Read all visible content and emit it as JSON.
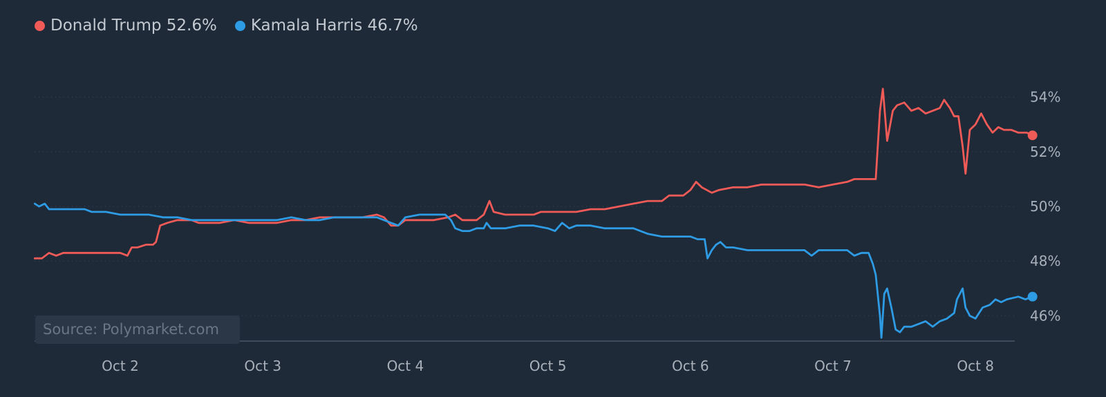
{
  "legend": {
    "trump": {
      "label": "Donald Trump 52.6%",
      "color": "#f05a57"
    },
    "harris": {
      "label": "Kamala Harris 46.7%",
      "color": "#2e9ce5"
    }
  },
  "source": "Source: Polymarket.com",
  "chart_data": {
    "type": "line",
    "xlim": [
      1.4,
      8.4
    ],
    "ylim": [
      45,
      55
    ],
    "x_ticks": [
      {
        "value": 2,
        "label": "Oct 2"
      },
      {
        "value": 3,
        "label": "Oct 3"
      },
      {
        "value": 4,
        "label": "Oct 4"
      },
      {
        "value": 5,
        "label": "Oct 5"
      },
      {
        "value": 6,
        "label": "Oct 6"
      },
      {
        "value": 7,
        "label": "Oct 7"
      },
      {
        "value": 8,
        "label": "Oct 8"
      }
    ],
    "y_ticks": [
      {
        "value": 46,
        "label": "46%"
      },
      {
        "value": 48,
        "label": "48%"
      },
      {
        "value": 50,
        "label": "50%"
      },
      {
        "value": 52,
        "label": "52%"
      },
      {
        "value": 54,
        "label": "54%"
      }
    ],
    "grid": true,
    "series": [
      {
        "name": "Donald Trump",
        "color": "#f05a57",
        "points": [
          [
            1.4,
            48.1
          ],
          [
            1.45,
            48.1
          ],
          [
            1.5,
            48.3
          ],
          [
            1.55,
            48.2
          ],
          [
            1.6,
            48.3
          ],
          [
            1.7,
            48.3
          ],
          [
            1.8,
            48.3
          ],
          [
            1.9,
            48.3
          ],
          [
            1.95,
            48.3
          ],
          [
            2.0,
            48.3
          ],
          [
            2.05,
            48.2
          ],
          [
            2.08,
            48.5
          ],
          [
            2.12,
            48.5
          ],
          [
            2.18,
            48.6
          ],
          [
            2.23,
            48.6
          ],
          [
            2.25,
            48.7
          ],
          [
            2.28,
            49.3
          ],
          [
            2.33,
            49.4
          ],
          [
            2.4,
            49.5
          ],
          [
            2.5,
            49.5
          ],
          [
            2.55,
            49.4
          ],
          [
            2.6,
            49.4
          ],
          [
            2.7,
            49.4
          ],
          [
            2.8,
            49.5
          ],
          [
            2.9,
            49.4
          ],
          [
            3.0,
            49.4
          ],
          [
            3.1,
            49.4
          ],
          [
            3.2,
            49.5
          ],
          [
            3.3,
            49.5
          ],
          [
            3.4,
            49.6
          ],
          [
            3.5,
            49.6
          ],
          [
            3.6,
            49.6
          ],
          [
            3.7,
            49.6
          ],
          [
            3.8,
            49.7
          ],
          [
            3.85,
            49.6
          ],
          [
            3.9,
            49.3
          ],
          [
            3.95,
            49.3
          ],
          [
            4.0,
            49.5
          ],
          [
            4.1,
            49.5
          ],
          [
            4.2,
            49.5
          ],
          [
            4.3,
            49.6
          ],
          [
            4.35,
            49.7
          ],
          [
            4.4,
            49.5
          ],
          [
            4.45,
            49.5
          ],
          [
            4.5,
            49.5
          ],
          [
            4.55,
            49.7
          ],
          [
            4.59,
            50.2
          ],
          [
            4.62,
            49.8
          ],
          [
            4.7,
            49.7
          ],
          [
            4.8,
            49.7
          ],
          [
            4.9,
            49.7
          ],
          [
            4.95,
            49.8
          ],
          [
            5.0,
            49.8
          ],
          [
            5.1,
            49.8
          ],
          [
            5.2,
            49.8
          ],
          [
            5.3,
            49.9
          ],
          [
            5.4,
            49.9
          ],
          [
            5.5,
            50.0
          ],
          [
            5.6,
            50.1
          ],
          [
            5.7,
            50.2
          ],
          [
            5.8,
            50.2
          ],
          [
            5.85,
            50.4
          ],
          [
            5.9,
            50.4
          ],
          [
            5.95,
            50.4
          ],
          [
            6.0,
            50.6
          ],
          [
            6.04,
            50.9
          ],
          [
            6.08,
            50.7
          ],
          [
            6.15,
            50.5
          ],
          [
            6.2,
            50.6
          ],
          [
            6.3,
            50.7
          ],
          [
            6.4,
            50.7
          ],
          [
            6.5,
            50.8
          ],
          [
            6.6,
            50.8
          ],
          [
            6.7,
            50.8
          ],
          [
            6.8,
            50.8
          ],
          [
            6.9,
            50.7
          ],
          [
            7.0,
            50.8
          ],
          [
            7.1,
            50.9
          ],
          [
            7.15,
            51.0
          ],
          [
            7.2,
            51.0
          ],
          [
            7.3,
            51.0
          ],
          [
            7.33,
            53.5
          ],
          [
            7.35,
            54.3
          ],
          [
            7.38,
            52.4
          ],
          [
            7.42,
            53.5
          ],
          [
            7.45,
            53.7
          ],
          [
            7.5,
            53.8
          ],
          [
            7.55,
            53.5
          ],
          [
            7.6,
            53.6
          ],
          [
            7.65,
            53.4
          ],
          [
            7.7,
            53.5
          ],
          [
            7.75,
            53.6
          ],
          [
            7.78,
            53.9
          ],
          [
            7.82,
            53.6
          ],
          [
            7.85,
            53.3
          ],
          [
            7.88,
            53.3
          ],
          [
            7.91,
            52.2
          ],
          [
            7.93,
            51.2
          ],
          [
            7.96,
            52.8
          ],
          [
            8.0,
            53.0
          ],
          [
            8.04,
            53.4
          ],
          [
            8.08,
            53.0
          ],
          [
            8.12,
            52.7
          ],
          [
            8.16,
            52.9
          ],
          [
            8.2,
            52.8
          ],
          [
            8.25,
            52.8
          ],
          [
            8.3,
            52.7
          ],
          [
            8.36,
            52.7
          ],
          [
            8.4,
            52.6
          ]
        ]
      },
      {
        "name": "Kamala Harris",
        "color": "#2e9ce5",
        "points": [
          [
            1.4,
            50.1
          ],
          [
            1.43,
            50.0
          ],
          [
            1.47,
            50.1
          ],
          [
            1.5,
            49.9
          ],
          [
            1.55,
            49.9
          ],
          [
            1.6,
            49.9
          ],
          [
            1.7,
            49.9
          ],
          [
            1.75,
            49.9
          ],
          [
            1.8,
            49.8
          ],
          [
            1.9,
            49.8
          ],
          [
            2.0,
            49.7
          ],
          [
            2.1,
            49.7
          ],
          [
            2.2,
            49.7
          ],
          [
            2.3,
            49.6
          ],
          [
            2.4,
            49.6
          ],
          [
            2.5,
            49.5
          ],
          [
            2.6,
            49.5
          ],
          [
            2.7,
            49.5
          ],
          [
            2.8,
            49.5
          ],
          [
            2.9,
            49.5
          ],
          [
            3.0,
            49.5
          ],
          [
            3.1,
            49.5
          ],
          [
            3.2,
            49.6
          ],
          [
            3.3,
            49.5
          ],
          [
            3.4,
            49.5
          ],
          [
            3.5,
            49.6
          ],
          [
            3.6,
            49.6
          ],
          [
            3.7,
            49.6
          ],
          [
            3.8,
            49.6
          ],
          [
            3.85,
            49.5
          ],
          [
            3.9,
            49.4
          ],
          [
            3.95,
            49.3
          ],
          [
            4.0,
            49.6
          ],
          [
            4.1,
            49.7
          ],
          [
            4.2,
            49.7
          ],
          [
            4.28,
            49.7
          ],
          [
            4.32,
            49.5
          ],
          [
            4.35,
            49.2
          ],
          [
            4.4,
            49.1
          ],
          [
            4.45,
            49.1
          ],
          [
            4.5,
            49.2
          ],
          [
            4.55,
            49.2
          ],
          [
            4.57,
            49.4
          ],
          [
            4.6,
            49.2
          ],
          [
            4.7,
            49.2
          ],
          [
            4.8,
            49.3
          ],
          [
            4.9,
            49.3
          ],
          [
            5.0,
            49.2
          ],
          [
            5.05,
            49.1
          ],
          [
            5.1,
            49.4
          ],
          [
            5.15,
            49.2
          ],
          [
            5.2,
            49.3
          ],
          [
            5.3,
            49.3
          ],
          [
            5.4,
            49.2
          ],
          [
            5.5,
            49.2
          ],
          [
            5.6,
            49.2
          ],
          [
            5.7,
            49.0
          ],
          [
            5.8,
            48.9
          ],
          [
            5.9,
            48.9
          ],
          [
            6.0,
            48.9
          ],
          [
            6.05,
            48.8
          ],
          [
            6.1,
            48.8
          ],
          [
            6.12,
            48.1
          ],
          [
            6.15,
            48.4
          ],
          [
            6.18,
            48.6
          ],
          [
            6.21,
            48.7
          ],
          [
            6.25,
            48.5
          ],
          [
            6.3,
            48.5
          ],
          [
            6.4,
            48.4
          ],
          [
            6.5,
            48.4
          ],
          [
            6.6,
            48.4
          ],
          [
            6.7,
            48.4
          ],
          [
            6.8,
            48.4
          ],
          [
            6.85,
            48.2
          ],
          [
            6.9,
            48.4
          ],
          [
            7.0,
            48.4
          ],
          [
            7.1,
            48.4
          ],
          [
            7.15,
            48.2
          ],
          [
            7.2,
            48.3
          ],
          [
            7.25,
            48.3
          ],
          [
            7.28,
            47.9
          ],
          [
            7.3,
            47.5
          ],
          [
            7.33,
            46.0
          ],
          [
            7.34,
            45.2
          ],
          [
            7.36,
            46.8
          ],
          [
            7.38,
            47.0
          ],
          [
            7.41,
            46.3
          ],
          [
            7.44,
            45.5
          ],
          [
            7.47,
            45.4
          ],
          [
            7.5,
            45.6
          ],
          [
            7.55,
            45.6
          ],
          [
            7.6,
            45.7
          ],
          [
            7.65,
            45.8
          ],
          [
            7.7,
            45.6
          ],
          [
            7.75,
            45.8
          ],
          [
            7.8,
            45.9
          ],
          [
            7.85,
            46.1
          ],
          [
            7.87,
            46.6
          ],
          [
            7.91,
            47.0
          ],
          [
            7.93,
            46.3
          ],
          [
            7.96,
            46.0
          ],
          [
            8.0,
            45.9
          ],
          [
            8.05,
            46.3
          ],
          [
            8.1,
            46.4
          ],
          [
            8.14,
            46.6
          ],
          [
            8.18,
            46.5
          ],
          [
            8.22,
            46.6
          ],
          [
            8.3,
            46.7
          ],
          [
            8.35,
            46.6
          ],
          [
            8.4,
            46.7
          ]
        ]
      }
    ]
  }
}
